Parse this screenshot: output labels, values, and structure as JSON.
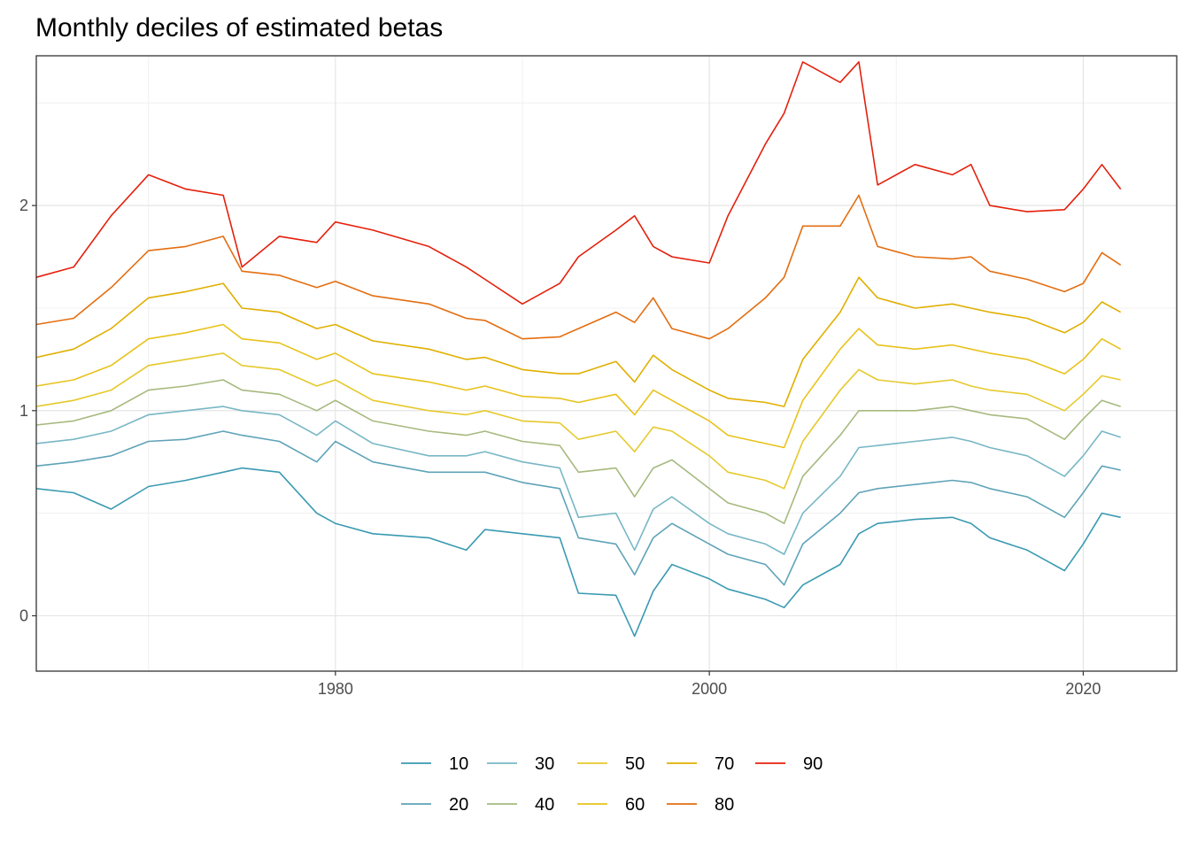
{
  "chart_data": {
    "type": "line",
    "title": "Monthly deciles of estimated betas",
    "xlabel": "",
    "ylabel": "",
    "xlim": [
      1964,
      2025
    ],
    "ylim": [
      -0.27,
      2.73
    ],
    "x_ticks": [
      1980,
      2000,
      2020
    ],
    "x_tick_labels": [
      "1980",
      "2000",
      "2020"
    ],
    "y_ticks": [
      0,
      1,
      2
    ],
    "y_tick_labels": [
      "0",
      "1",
      "2"
    ],
    "grid": true,
    "legend_position": "bottom",
    "legend_order": [
      "10",
      "30",
      "50",
      "70",
      "90",
      "20",
      "40",
      "60",
      "80"
    ],
    "x": [
      1964,
      1966,
      1968,
      1970,
      1972,
      1974,
      1975,
      1977,
      1979,
      1980,
      1982,
      1985,
      1987,
      1988,
      1990,
      1992,
      1993,
      1995,
      1996,
      1997,
      1998,
      2000,
      2001,
      2003,
      2004,
      2005,
      2007,
      2008,
      2009,
      2011,
      2013,
      2014,
      2015,
      2017,
      2019,
      2020,
      2021,
      2022
    ],
    "series": [
      {
        "name": "10",
        "color": "#3a9ab2",
        "values": [
          0.62,
          0.6,
          0.52,
          0.63,
          0.66,
          0.7,
          0.72,
          0.7,
          0.5,
          0.45,
          0.4,
          0.38,
          0.32,
          0.42,
          0.4,
          0.38,
          0.11,
          0.1,
          -0.1,
          0.12,
          0.25,
          0.18,
          0.13,
          0.08,
          0.04,
          0.15,
          0.25,
          0.4,
          0.45,
          0.47,
          0.48,
          0.45,
          0.38,
          0.32,
          0.22,
          0.35,
          0.5,
          0.48
        ]
      },
      {
        "name": "20",
        "color": "#5fa3b8",
        "values": [
          0.73,
          0.75,
          0.78,
          0.85,
          0.86,
          0.9,
          0.88,
          0.85,
          0.75,
          0.85,
          0.75,
          0.7,
          0.7,
          0.7,
          0.65,
          0.62,
          0.38,
          0.35,
          0.2,
          0.38,
          0.45,
          0.35,
          0.3,
          0.25,
          0.15,
          0.35,
          0.5,
          0.6,
          0.62,
          0.64,
          0.66,
          0.65,
          0.62,
          0.58,
          0.48,
          0.6,
          0.73,
          0.71
        ]
      },
      {
        "name": "30",
        "color": "#78b7c5",
        "values": [
          0.84,
          0.86,
          0.9,
          0.98,
          1.0,
          1.02,
          1.0,
          0.98,
          0.88,
          0.95,
          0.84,
          0.78,
          0.78,
          0.8,
          0.75,
          0.72,
          0.48,
          0.5,
          0.32,
          0.52,
          0.58,
          0.45,
          0.4,
          0.35,
          0.3,
          0.5,
          0.68,
          0.82,
          0.83,
          0.85,
          0.87,
          0.85,
          0.82,
          0.78,
          0.68,
          0.78,
          0.9,
          0.87
        ]
      },
      {
        "name": "40",
        "color": "#a6b97e",
        "values": [
          0.93,
          0.95,
          1.0,
          1.1,
          1.12,
          1.15,
          1.1,
          1.08,
          1.0,
          1.05,
          0.95,
          0.9,
          0.88,
          0.9,
          0.85,
          0.83,
          0.7,
          0.72,
          0.58,
          0.72,
          0.76,
          0.62,
          0.55,
          0.5,
          0.45,
          0.68,
          0.88,
          1.0,
          1.0,
          1.0,
          1.02,
          1.0,
          0.98,
          0.96,
          0.86,
          0.96,
          1.05,
          1.02
        ]
      },
      {
        "name": "50",
        "color": "#e6c92c",
        "values": [
          1.02,
          1.05,
          1.1,
          1.22,
          1.25,
          1.28,
          1.22,
          1.2,
          1.12,
          1.15,
          1.05,
          1.0,
          0.98,
          1.0,
          0.95,
          0.94,
          0.86,
          0.9,
          0.8,
          0.92,
          0.9,
          0.78,
          0.7,
          0.66,
          0.62,
          0.85,
          1.1,
          1.2,
          1.15,
          1.13,
          1.15,
          1.12,
          1.1,
          1.08,
          1.0,
          1.08,
          1.17,
          1.15
        ]
      },
      {
        "name": "60",
        "color": "#e8c21b",
        "values": [
          1.12,
          1.15,
          1.22,
          1.35,
          1.38,
          1.42,
          1.35,
          1.33,
          1.25,
          1.28,
          1.18,
          1.14,
          1.1,
          1.12,
          1.07,
          1.06,
          1.04,
          1.08,
          0.98,
          1.1,
          1.05,
          0.95,
          0.88,
          0.84,
          0.82,
          1.05,
          1.3,
          1.4,
          1.32,
          1.3,
          1.32,
          1.3,
          1.28,
          1.25,
          1.18,
          1.25,
          1.35,
          1.3
        ]
      },
      {
        "name": "70",
        "color": "#e0af00",
        "values": [
          1.26,
          1.3,
          1.4,
          1.55,
          1.58,
          1.62,
          1.5,
          1.48,
          1.4,
          1.42,
          1.34,
          1.3,
          1.25,
          1.26,
          1.2,
          1.18,
          1.18,
          1.24,
          1.14,
          1.27,
          1.2,
          1.1,
          1.06,
          1.04,
          1.02,
          1.25,
          1.48,
          1.65,
          1.55,
          1.5,
          1.52,
          1.5,
          1.48,
          1.45,
          1.38,
          1.43,
          1.53,
          1.48
        ]
      },
      {
        "name": "80",
        "color": "#e36e11",
        "values": [
          1.42,
          1.45,
          1.6,
          1.78,
          1.8,
          1.85,
          1.68,
          1.66,
          1.6,
          1.63,
          1.56,
          1.52,
          1.45,
          1.44,
          1.35,
          1.36,
          1.4,
          1.48,
          1.43,
          1.55,
          1.4,
          1.35,
          1.4,
          1.55,
          1.65,
          1.9,
          1.9,
          2.05,
          1.8,
          1.75,
          1.74,
          1.75,
          1.68,
          1.64,
          1.58,
          1.62,
          1.77,
          1.71
        ]
      },
      {
        "name": "90",
        "color": "#e4200c",
        "values": [
          1.65,
          1.7,
          1.95,
          2.15,
          2.08,
          2.05,
          1.7,
          1.85,
          1.82,
          1.92,
          1.88,
          1.8,
          1.7,
          1.64,
          1.52,
          1.62,
          1.75,
          1.88,
          1.95,
          1.8,
          1.75,
          1.72,
          1.95,
          2.3,
          2.45,
          2.7,
          2.6,
          2.7,
          2.1,
          2.2,
          2.15,
          2.2,
          2.0,
          1.97,
          1.98,
          2.08,
          2.2,
          2.08
        ]
      }
    ]
  }
}
